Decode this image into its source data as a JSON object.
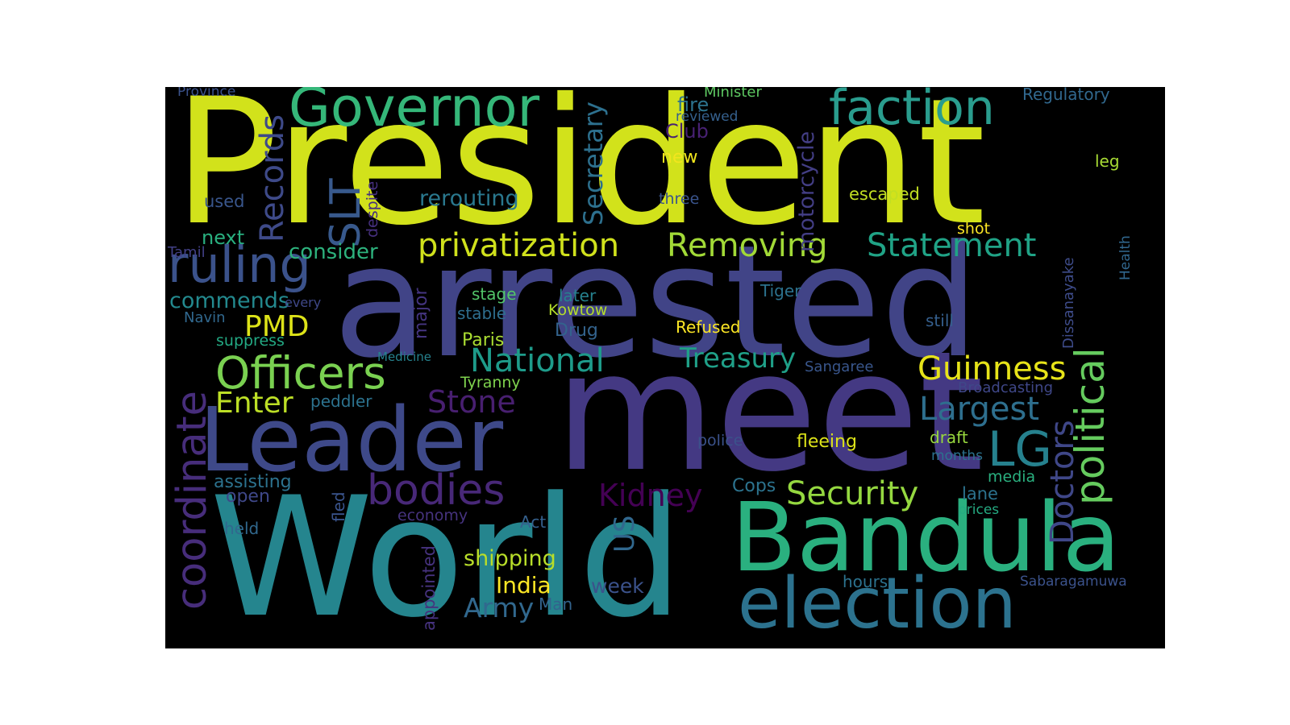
{
  "words": [
    {
      "text": "President",
      "color": "#d2e21b"
    },
    {
      "text": "arrested",
      "color": "#414487"
    },
    {
      "text": "meet",
      "color": "#443983"
    },
    {
      "text": "World",
      "color": "#25858e"
    },
    {
      "text": "Leader",
      "color": "#3e4989"
    },
    {
      "text": "Bandula",
      "color": "#2ab07f"
    },
    {
      "text": "election",
      "color": "#2c728e"
    },
    {
      "text": "Governor",
      "color": "#35b779"
    },
    {
      "text": "faction",
      "color": "#2a9d8e"
    },
    {
      "text": "political",
      "color": "#65cb5e"
    },
    {
      "text": "coordinate",
      "color": "#472d7b"
    },
    {
      "text": "ruling",
      "color": "#3b528b"
    },
    {
      "text": "Officers",
      "color": "#7ad151"
    },
    {
      "text": "bodies",
      "color": "#482878"
    },
    {
      "text": "privatization",
      "color": "#d0e11c"
    },
    {
      "text": "Removing",
      "color": "#a2da37"
    },
    {
      "text": "Statement",
      "color": "#20a386"
    },
    {
      "text": "SLT",
      "color": "#38598c"
    },
    {
      "text": "Records",
      "color": "#3e4a89"
    },
    {
      "text": "Guinness",
      "color": "#e7e419"
    },
    {
      "text": "LG",
      "color": "#26818e"
    },
    {
      "text": "Largest",
      "color": "#2e6f8e"
    },
    {
      "text": "Security",
      "color": "#95d840"
    },
    {
      "text": "Doctors",
      "color": "#3f4788"
    },
    {
      "text": "Kidney",
      "color": "#440154"
    },
    {
      "text": "National",
      "color": "#1e9b8a"
    },
    {
      "text": "Treasury",
      "color": "#1fa088"
    },
    {
      "text": "Stone",
      "color": "#481f70"
    },
    {
      "text": "Enter",
      "color": "#bddf26"
    },
    {
      "text": "PMD",
      "color": "#dde318"
    },
    {
      "text": "Secretary",
      "color": "#2d708e"
    },
    {
      "text": "motorcycle",
      "color": "#433e85"
    },
    {
      "text": "rerouting",
      "color": "#2a788e"
    },
    {
      "text": "commends",
      "color": "#23898e"
    },
    {
      "text": "consider",
      "color": "#2db27d"
    },
    {
      "text": "next",
      "color": "#29af7f"
    },
    {
      "text": "fire",
      "color": "#2c738e"
    },
    {
      "text": "Club",
      "color": "#482173"
    },
    {
      "text": "new",
      "color": "#f1e51d"
    },
    {
      "text": "three",
      "color": "#3a548c"
    },
    {
      "text": "escaped",
      "color": "#c2df23"
    },
    {
      "text": "leg",
      "color": "#a8db34"
    },
    {
      "text": "Regulatory",
      "color": "#31688e"
    },
    {
      "text": "Minister",
      "color": "#5ec962"
    },
    {
      "text": "reviewed",
      "color": "#35608d"
    },
    {
      "text": "Province",
      "color": "#3b528b"
    },
    {
      "text": "used",
      "color": "#39568c"
    },
    {
      "text": "despite",
      "color": "#46307e"
    },
    {
      "text": "Tamil",
      "color": "#424086"
    },
    {
      "text": "shot",
      "color": "#fde725"
    },
    {
      "text": "Health",
      "color": "#31678e"
    },
    {
      "text": "Dissanayake",
      "color": "#3e4c8a"
    },
    {
      "text": "Tiger",
      "color": "#2c728e"
    },
    {
      "text": "later",
      "color": "#26818e"
    },
    {
      "text": "stage",
      "color": "#52c569"
    },
    {
      "text": "stable",
      "color": "#2e6e8e"
    },
    {
      "text": "major",
      "color": "#453581"
    },
    {
      "text": "every",
      "color": "#3f4889"
    },
    {
      "text": "Navin",
      "color": "#31688e"
    },
    {
      "text": "suppress",
      "color": "#23a983"
    },
    {
      "text": "Kowtow",
      "color": "#b5de2b"
    },
    {
      "text": "Refused",
      "color": "#fde725"
    },
    {
      "text": "still",
      "color": "#355f8d"
    },
    {
      "text": "Drug",
      "color": "#33638d"
    },
    {
      "text": "Paris",
      "color": "#aadc32"
    },
    {
      "text": "Medicine",
      "color": "#26828e"
    },
    {
      "text": "Sangaree",
      "color": "#39568c"
    },
    {
      "text": "Tyranny",
      "color": "#7fd34e"
    },
    {
      "text": "peddler",
      "color": "#2c728e"
    },
    {
      "text": "Broadcasting",
      "color": "#3f4788"
    },
    {
      "text": "police",
      "color": "#3b528b"
    },
    {
      "text": "fleeing",
      "color": "#dce319"
    },
    {
      "text": "draft",
      "color": "#98d83e"
    },
    {
      "text": "months",
      "color": "#2c728e"
    },
    {
      "text": "assisting",
      "color": "#2c728e"
    },
    {
      "text": "open",
      "color": "#3f4889"
    },
    {
      "text": "fled",
      "color": "#3a548c"
    },
    {
      "text": "Cops",
      "color": "#2c738e"
    },
    {
      "text": "media",
      "color": "#2ab07f"
    },
    {
      "text": "lane",
      "color": "#2c728e"
    },
    {
      "text": "prices",
      "color": "#25ab82"
    },
    {
      "text": "economy",
      "color": "#46337f"
    },
    {
      "text": "US",
      "color": "#31688e"
    },
    {
      "text": "held",
      "color": "#31688e"
    },
    {
      "text": "Act",
      "color": "#35608d"
    },
    {
      "text": "shipping",
      "color": "#b8de29"
    },
    {
      "text": "India",
      "color": "#fde725"
    },
    {
      "text": "week",
      "color": "#3b528b"
    },
    {
      "text": "hours",
      "color": "#2c728e"
    },
    {
      "text": "appointed",
      "color": "#46327e"
    },
    {
      "text": "Army",
      "color": "#31688e"
    },
    {
      "text": "Man",
      "color": "#33638d"
    },
    {
      "text": "Sabaragamuwa",
      "color": "#3b528b"
    }
  ]
}
